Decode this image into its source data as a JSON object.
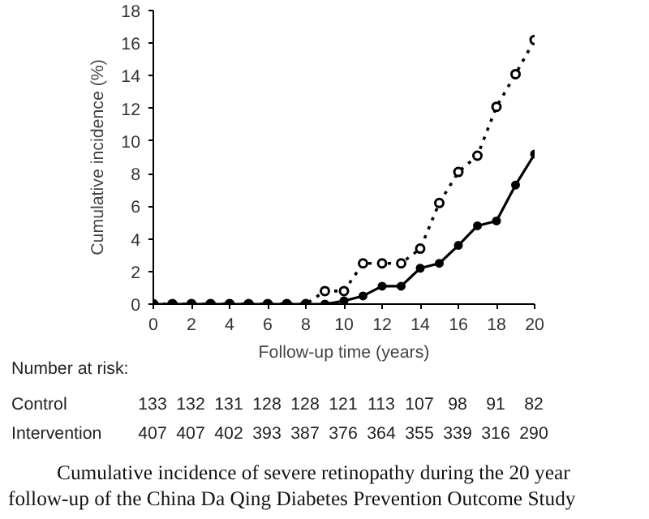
{
  "chart_data": {
    "type": "line",
    "xlabel": "Follow-up time (years)",
    "ylabel": "Cumulative incidence (%)",
    "x": [
      0,
      1,
      2,
      3,
      4,
      5,
      6,
      7,
      8,
      9,
      10,
      11,
      12,
      13,
      14,
      15,
      16,
      17,
      18,
      19,
      20
    ],
    "series": [
      {
        "color": "#000000",
        "line_style": "dotted",
        "values": [
          0,
          0,
          0,
          0,
          0,
          0,
          0,
          0,
          0,
          0.8,
          0.8,
          2.5,
          2.5,
          2.5,
          3.4,
          6.2,
          8.1,
          9.1,
          12.1,
          14.1,
          16.2
        ]
      },
      {
        "color": "#000000",
        "line_style": "solid",
        "values": [
          0,
          0,
          0,
          0,
          0,
          0,
          0,
          0,
          0,
          0,
          0.2,
          0.5,
          1.1,
          1.1,
          2.2,
          2.5,
          3.6,
          4.8,
          5.1,
          7.3,
          9.2
        ]
      }
    ],
    "xlim": [
      0,
      20
    ],
    "xticks": [
      0,
      2,
      4,
      6,
      8,
      10,
      12,
      14,
      16,
      18,
      20
    ],
    "ylim": [
      0,
      18
    ],
    "yticks": [
      0,
      2,
      4,
      6,
      8,
      10,
      12,
      14,
      16,
      18
    ],
    "grid": false,
    "marker": "circle",
    "annotations": [
      "Number at risk:",
      "Control 133 132 131 128 128 121 113 107 98 91 82",
      "Intervention 407 407 402 393 387 376 364 355 339 316 290",
      "Cumulative incidence of severe retinopathy during the 20 year follow-up of the China Da Qing Diabetes Prevention Outcome Study"
    ]
  }
}
